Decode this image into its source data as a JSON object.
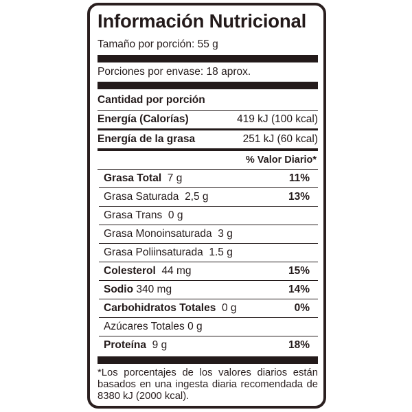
{
  "title": "Información Nutricional",
  "serving_size": "Tamaño por porción: 55 g",
  "servings_per_container": "Porciones por envase: 18 aprox.",
  "amount_per_serving": "Cantidad por porción",
  "energy": {
    "label": "Energía (Calorías)",
    "value": "419 kJ (100 kcal)"
  },
  "energy_fat": {
    "label": "Energía de la grasa",
    "value": "251 kJ (60 kcal)"
  },
  "daily_value_header": "% Valor Diario*",
  "nutrients": [
    {
      "label": "Grasa Total",
      "amount": "7 g",
      "dv": "11%",
      "bold": true
    },
    {
      "label": "Grasa Saturada",
      "amount": "2,5 g",
      "dv": "13%",
      "bold": false
    },
    {
      "label": "Grasa Trans",
      "amount": "0 g",
      "dv": "",
      "bold": false
    },
    {
      "label": "Grasa Monoinsaturada",
      "amount": "3 g",
      "dv": "",
      "bold": false
    },
    {
      "label": "Grasa Poliinsaturada",
      "amount": "1.5 g",
      "dv": "",
      "bold": false
    },
    {
      "label": "Colesterol",
      "amount": "44 mg",
      "dv": "15%",
      "bold": true
    },
    {
      "label": "Sodio",
      "amount": "340 mg",
      "dv": "14%",
      "bold": true
    },
    {
      "label": "Carbohidratos Totales",
      "amount": "0 g",
      "dv": "0%",
      "bold": true
    },
    {
      "label": "Azúcares Totales",
      "amount": "0 g",
      "dv": "",
      "bold": false
    },
    {
      "label": "Proteína",
      "amount": "9 g",
      "dv": "18%",
      "bold": true
    }
  ],
  "footnote": "*Los porcentajes de los valores diarios están basados en una ingesta diaria recomendada de 8380 kJ (2000 kcal).",
  "colors": {
    "ink": "#231a1a",
    "background": "#ffffff"
  }
}
